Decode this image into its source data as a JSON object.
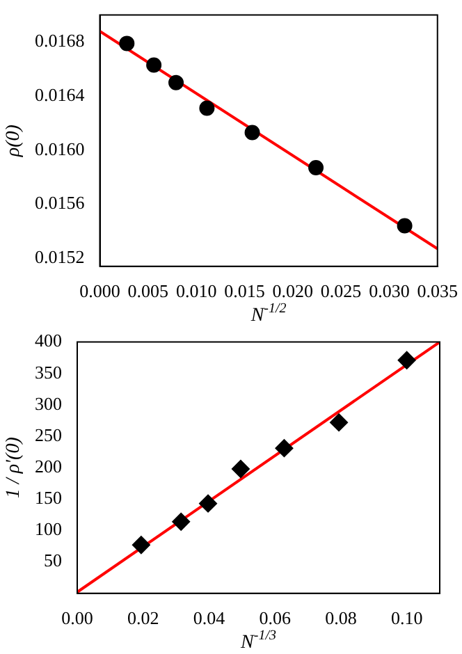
{
  "chart_data": [
    {
      "type": "scatter",
      "xlabel": "N$^{-1/2}$",
      "ylabel": "ρ(0)",
      "grid": false,
      "legend": false,
      "xlim": [
        0,
        0.035
      ],
      "xticks": [
        {
          "value": 0,
          "label": "0.000"
        },
        {
          "value": 0.005,
          "label": "0.005"
        },
        {
          "value": 0.01,
          "label": "0.010"
        },
        {
          "value": 0.015,
          "label": "0.015"
        },
        {
          "value": 0.02,
          "label": "0.020"
        },
        {
          "value": 0.025,
          "label": "0.025"
        },
        {
          "value": 0.03,
          "label": "0.030"
        },
        {
          "value": 0.035,
          "label": "0.035"
        }
      ],
      "ylim": [
        0.01514,
        0.017
      ],
      "yticks": [
        0.0152,
        0.0156,
        {
          "value": 0.016,
          "label": "0.0160"
        },
        0.0164,
        0.0168
      ],
      "series": [
        {
          "marker": "circle",
          "color": "#000000",
          "x": [
            0.0028,
            0.0056,
            0.0079,
            0.0111,
            0.0158,
            0.0224,
            0.0316
          ],
          "values": [
            0.01679,
            0.01663,
            0.0165,
            0.01631,
            0.01613,
            0.01587,
            0.01544
          ]
        },
        {
          "type": "line",
          "marker": "none",
          "color": "#ff0000",
          "x": [
            0,
            0.035
          ],
          "values": [
            0.01688,
            0.01527
          ]
        }
      ]
    },
    {
      "type": "scatter",
      "xlabel": "N$^{-1/3}$",
      "ylabel": "1 / ρ'(0)",
      "grid": false,
      "legend": false,
      "xlim": [
        0,
        0.11
      ],
      "xticks": [
        {
          "value": 0,
          "label": "0.00"
        },
        {
          "value": 0.02,
          "label": "0.02"
        },
        {
          "value": 0.04,
          "label": "0.04"
        },
        {
          "value": 0.06,
          "label": "0.06"
        },
        {
          "value": 0.08,
          "label": "0.08"
        },
        {
          "value": 0.1,
          "label": "0.10"
        }
      ],
      "ylim": [
        0,
        400
      ],
      "yticks": [
        50,
        100,
        150,
        200,
        250,
        300,
        350,
        400
      ],
      "series": [
        {
          "marker": "diamond",
          "color": "#000000",
          "x": [
            0.0194,
            0.0315,
            0.0397,
            0.0496,
            0.0628,
            0.0794,
            0.1
          ],
          "values": [
            77,
            114,
            143,
            198,
            231,
            272,
            371
          ]
        },
        {
          "type": "line",
          "marker": "none",
          "color": "#ff0000",
          "x": [
            0,
            0.11
          ],
          "values": [
            2,
            400
          ]
        }
      ]
    }
  ]
}
